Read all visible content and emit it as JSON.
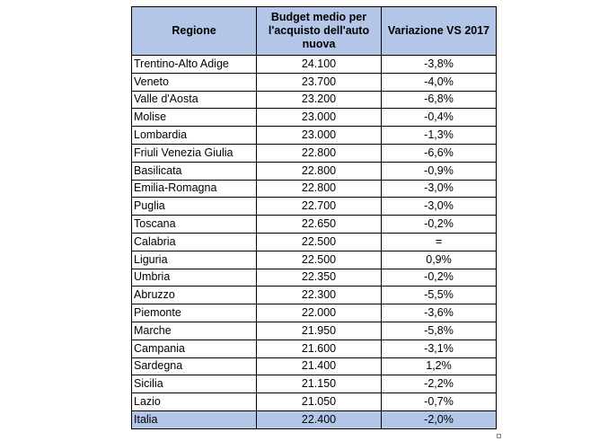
{
  "headers": {
    "region": "Regione",
    "budget": "Budget medio per l'acquisto dell'auto nuova",
    "change": "Variazione VS 2017"
  },
  "rows": [
    {
      "region": "Trentino-Alto Adige",
      "budget": "24.100",
      "change": "-3,8%"
    },
    {
      "region": "Veneto",
      "budget": "23.700",
      "change": "-4,0%"
    },
    {
      "region": "Valle d'Aosta",
      "budget": "23.200",
      "change": "-6,8%"
    },
    {
      "region": "Molise",
      "budget": "23.000",
      "change": "-0,4%"
    },
    {
      "region": "Lombardia",
      "budget": "23.000",
      "change": "-1,3%"
    },
    {
      "region": "Friuli Venezia Giulia",
      "budget": "22.800",
      "change": "-6,6%"
    },
    {
      "region": "Basilicata",
      "budget": "22.800",
      "change": "-0,9%"
    },
    {
      "region": "Emilia-Romagna",
      "budget": "22.800",
      "change": "-3,0%"
    },
    {
      "region": "Puglia",
      "budget": "22.700",
      "change": "-3,0%"
    },
    {
      "region": "Toscana",
      "budget": "22.650",
      "change": "-0,2%"
    },
    {
      "region": "Calabria",
      "budget": "22.500",
      "change": "="
    },
    {
      "region": "Liguria",
      "budget": "22.500",
      "change": "0,9%"
    },
    {
      "region": "Umbria",
      "budget": "22.350",
      "change": "-0,2%"
    },
    {
      "region": "Abruzzo",
      "budget": "22.300",
      "change": "-5,5%"
    },
    {
      "region": "Piemonte",
      "budget": "22.000",
      "change": "-3,6%"
    },
    {
      "region": "Marche",
      "budget": "21.950",
      "change": "-5,8%"
    },
    {
      "region": "Campania",
      "budget": "21.600",
      "change": "-3,1%"
    },
    {
      "region": "Sardegna",
      "budget": "21.400",
      "change": "1,2%"
    },
    {
      "region": "Sicilia",
      "budget": "21.150",
      "change": "-2,2%"
    },
    {
      "region": "Lazio",
      "budget": "21.050",
      "change": "-0,7%"
    }
  ],
  "total": {
    "region": "Italia",
    "budget": "22.400",
    "change": "-2,0%"
  },
  "colors": {
    "header_fill": "#b4c6e7",
    "total_fill": "#b4c6e7",
    "border": "#000000"
  }
}
